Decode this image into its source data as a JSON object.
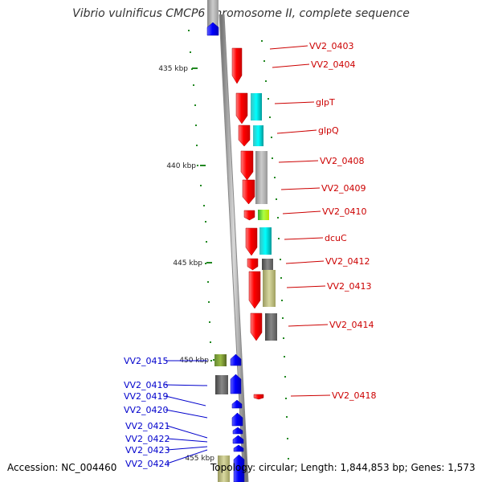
{
  "title": "Vibrio vulnificus CMCP6 chromosome II, complete sequence",
  "footer": {
    "accession": "Accession: NC_004460",
    "summary": "Topology: circular; Length: 1,844,853 bp; Genes: 1,573"
  },
  "colors": {
    "forward_gene": "#ff0000",
    "reverse_gene": "#0000ff",
    "forward_label": "#cc0000",
    "reverse_label": "#0000cc",
    "backbone": "#999999",
    "tick": "#228822"
  },
  "ruler": [
    {
      "label": "435 kbp"
    },
    {
      "label": "440 kbp"
    },
    {
      "label": "445 kbp"
    },
    {
      "label": "450 kbp"
    },
    {
      "label": "455 kbp"
    }
  ],
  "forward_labels": [
    "VV2_0403",
    "VV2_0404",
    "glpT",
    "glpQ",
    "VV2_0408",
    "VV2_0409",
    "VV2_0410",
    "dcuC",
    "VV2_0412",
    "VV2_0413",
    "VV2_0414",
    "VV2_0418"
  ],
  "reverse_labels": [
    "VV2_0415",
    "VV2_0416",
    "VV2_0419",
    "VV2_0420",
    "VV2_0421",
    "VV2_0422",
    "VV2_0423",
    "VV2_0424"
  ]
}
